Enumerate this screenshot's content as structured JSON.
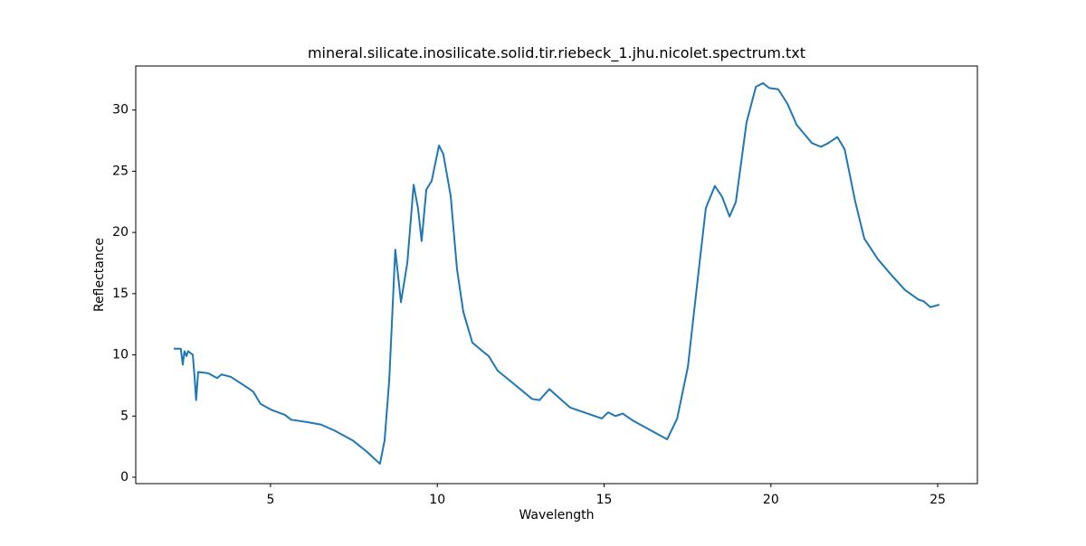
{
  "chart_data": {
    "type": "line",
    "title": "mineral.silicate.inosilicate.solid.tir.riebeck_1.jhu.nicolet.spectrum.txt",
    "x_label": "Wavelength",
    "y_label": "Reflectance",
    "x": [
      2.1,
      2.31,
      2.37,
      2.42,
      2.48,
      2.53,
      2.67,
      2.72,
      2.77,
      2.83,
      3.13,
      3.4,
      3.53,
      3.81,
      4.21,
      4.48,
      4.7,
      5.03,
      5.43,
      5.62,
      6.11,
      6.52,
      6.93,
      7.47,
      7.88,
      8.28,
      8.42,
      8.56,
      8.74,
      8.91,
      9.1,
      9.29,
      9.42,
      9.53,
      9.67,
      9.83,
      10.05,
      10.18,
      10.4,
      10.59,
      10.78,
      11.05,
      11.4,
      11.54,
      11.81,
      12.22,
      12.84,
      13.06,
      13.36,
      13.77,
      13.98,
      14.93,
      15.12,
      15.34,
      15.56,
      15.88,
      16.42,
      16.89,
      17.19,
      17.51,
      17.84,
      18.05,
      18.32,
      18.54,
      18.76,
      18.95,
      19.27,
      19.55,
      19.76,
      19.95,
      20.22,
      20.5,
      20.77,
      21.23,
      21.5,
      21.72,
      21.99,
      22.21,
      22.53,
      22.8,
      23.21,
      23.62,
      24.02,
      24.43,
      24.57,
      24.78,
      25.05
    ],
    "series": [
      {
        "name": "Reflectance",
        "color": "#1f77b4",
        "values": [
          10.5,
          10.5,
          9.2,
          10.3,
          9.9,
          10.3,
          10.0,
          8.3,
          6.3,
          8.6,
          8.5,
          8.1,
          8.4,
          8.2,
          7.5,
          7.0,
          6.0,
          5.5,
          5.1,
          4.7,
          4.5,
          4.3,
          3.8,
          3.0,
          2.1,
          1.1,
          3.0,
          8.0,
          18.6,
          14.3,
          17.5,
          23.9,
          22.0,
          19.3,
          23.5,
          24.2,
          27.1,
          26.4,
          23.0,
          17.0,
          13.5,
          11.0,
          10.2,
          9.9,
          8.7,
          7.8,
          6.4,
          6.3,
          7.2,
          6.2,
          5.7,
          4.8,
          5.3,
          5.0,
          5.2,
          4.6,
          3.8,
          3.1,
          4.8,
          9.0,
          17.0,
          22.0,
          23.8,
          22.9,
          21.3,
          22.5,
          29.0,
          31.9,
          32.2,
          31.8,
          31.7,
          30.5,
          28.8,
          27.3,
          27.0,
          27.3,
          27.8,
          26.8,
          22.5,
          19.5,
          17.8,
          16.5,
          15.3,
          14.5,
          14.4,
          13.9,
          14.1
        ]
      }
    ],
    "xlim": [
      0.96,
      26.19
    ],
    "xticks": [
      5,
      10,
      15,
      20,
      25
    ],
    "ylim": [
      -0.52,
      33.6
    ],
    "yticks": [
      0,
      5,
      10,
      15,
      20,
      25,
      30
    ],
    "grid": false
  }
}
